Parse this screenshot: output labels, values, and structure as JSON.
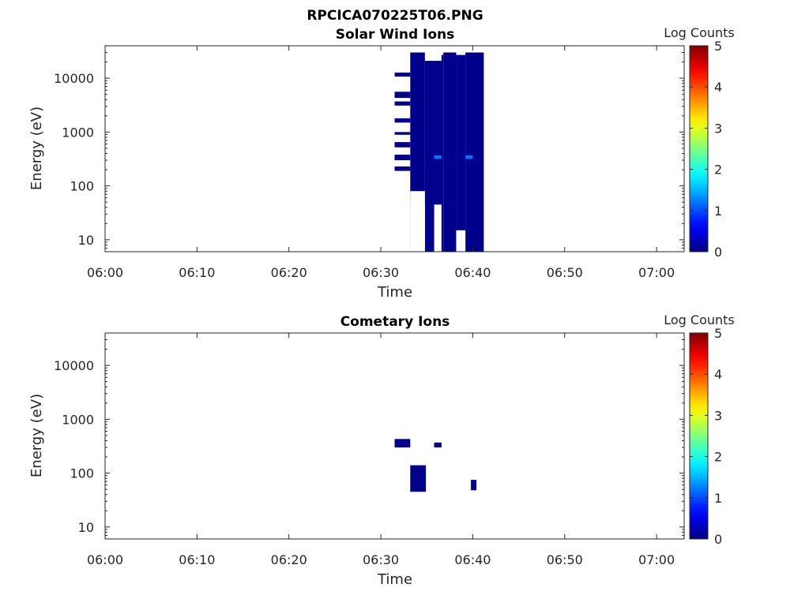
{
  "figure": {
    "title": "RPCICA070225T06.PNG"
  },
  "chart_data": [
    {
      "type": "heatmap",
      "title": "Solar Wind Ions",
      "xlabel": "Time",
      "ylabel": "Energy (eV)",
      "y_scale": "log",
      "x_range": [
        "06:00",
        "07:03"
      ],
      "ylim": [
        6,
        40000
      ],
      "x_ticks": [
        "06:00",
        "06:10",
        "06:20",
        "06:30",
        "06:40",
        "06:50",
        "07:00"
      ],
      "y_ticks": [
        "10",
        "100",
        "1000",
        "10000"
      ],
      "colorbar": {
        "label": "Log Counts",
        "range": [
          0,
          5
        ],
        "ticks": [
          "0",
          "1",
          "2",
          "3",
          "4",
          "5"
        ],
        "colormap": "jet"
      },
      "grid": false,
      "cells": [
        {
          "t0": "06:31.5",
          "t1": "06:33.2",
          "e0": 10700,
          "e1": 12700,
          "value": 0.05
        },
        {
          "t0": "06:31.5",
          "t1": "06:33.2",
          "e0": 4300,
          "e1": 5600,
          "value": 0.05
        },
        {
          "t0": "06:31.5",
          "t1": "06:33.2",
          "e0": 3100,
          "e1": 3700,
          "value": 0.05
        },
        {
          "t0": "06:31.5",
          "t1": "06:33.2",
          "e0": 1500,
          "e1": 1800,
          "value": 0.05
        },
        {
          "t0": "06:31.5",
          "t1": "06:33.2",
          "e0": 890,
          "e1": 1000,
          "value": 0.05
        },
        {
          "t0": "06:31.5",
          "t1": "06:33.2",
          "e0": 520,
          "e1": 650,
          "value": 0.05
        },
        {
          "t0": "06:31.5",
          "t1": "06:33.2",
          "e0": 300,
          "e1": 380,
          "value": 0.05
        },
        {
          "t0": "06:31.5",
          "t1": "06:33.2",
          "e0": 190,
          "e1": 230,
          "value": 0.05
        },
        {
          "t0": "06:33.2",
          "t1": "06:34.8",
          "e0": 6,
          "e1": 30000,
          "value": 0.05
        },
        {
          "t0": "06:34.8",
          "t1": "06:35.8",
          "e0": 6,
          "e1": 27000,
          "value": 0.05
        },
        {
          "t0": "06:35.8",
          "t1": "06:36.8",
          "e0": 6,
          "e1": 27000,
          "value": 0.05
        },
        {
          "t0": "06:36.8",
          "t1": "06:38.2",
          "e0": 6,
          "e1": 30000,
          "value": 0.05
        },
        {
          "t0": "06:38.2",
          "t1": "06:39.2",
          "e0": 6,
          "e1": 27000,
          "value": 0.05
        },
        {
          "t0": "06:39.2",
          "t1": "06:41.2",
          "e0": 6,
          "e1": 30000,
          "value": 0.05
        },
        {
          "t0": "06:35.8",
          "t1": "06:36.6",
          "e0": 320,
          "e1": 370,
          "value": 1.2
        },
        {
          "t0": "06:39.2",
          "t1": "06:40.0",
          "e0": 320,
          "e1": 370,
          "value": 1.2
        }
      ],
      "empty_cells": [
        {
          "t0": "06:33.2",
          "t1": "06:34.8",
          "e0": 6,
          "e1": 80
        },
        {
          "t0": "06:33.2",
          "t1": "06:34.8",
          "e0": 6,
          "e1": 45
        },
        {
          "t0": "06:35.8",
          "t1": "06:36.6",
          "e0": 6,
          "e1": 45
        },
        {
          "t0": "06:35.8",
          "t1": "06:36.6",
          "e0": 21000,
          "e1": 30000
        },
        {
          "t0": "06:34.8",
          "t1": "06:35.8",
          "e0": 21000,
          "e1": 30000
        },
        {
          "t0": "06:38.2",
          "t1": "06:39.2",
          "e0": 6,
          "e1": 15
        }
      ]
    },
    {
      "type": "heatmap",
      "title": "Cometary Ions",
      "xlabel": "Time",
      "ylabel": "Energy (eV)",
      "y_scale": "log",
      "x_range": [
        "06:00",
        "07:03"
      ],
      "ylim": [
        6,
        40000
      ],
      "x_ticks": [
        "06:00",
        "06:10",
        "06:20",
        "06:30",
        "06:40",
        "06:50",
        "07:00"
      ],
      "y_ticks": [
        "10",
        "100",
        "1000",
        "10000"
      ],
      "colorbar": {
        "label": "Log Counts",
        "range": [
          0,
          5
        ],
        "ticks": [
          "0",
          "1",
          "2",
          "3",
          "4",
          "5"
        ],
        "colormap": "jet"
      },
      "grid": false,
      "cells": [
        {
          "t0": "06:31.5",
          "t1": "06:33.2",
          "e0": 300,
          "e1": 430,
          "value": 0.05
        },
        {
          "t0": "06:33.2",
          "t1": "06:34.9",
          "e0": 45,
          "e1": 140,
          "value": 0.05
        },
        {
          "t0": "06:35.8",
          "t1": "06:36.6",
          "e0": 300,
          "e1": 370,
          "value": 0.05
        },
        {
          "t0": "06:39.8",
          "t1": "06:40.4",
          "e0": 48,
          "e1": 75,
          "value": 0.05
        }
      ],
      "empty_cells": []
    }
  ]
}
